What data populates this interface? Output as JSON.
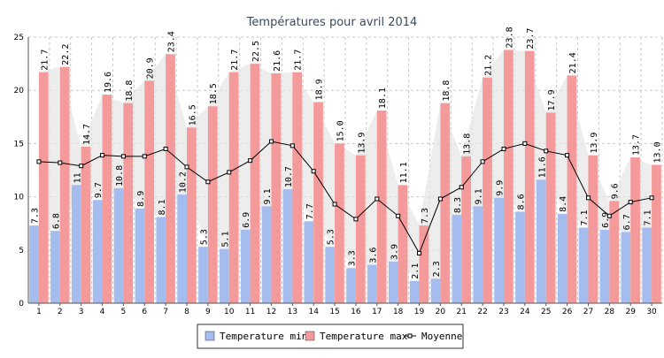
{
  "chart_data": {
    "type": "bar",
    "title": "Températures pour avril 2014",
    "xlabel": "",
    "ylabel": "",
    "ylim": [
      0,
      25
    ],
    "yticks": [
      0,
      5,
      10,
      15,
      20,
      25
    ],
    "grid": true,
    "legend_position": "bottom",
    "categories": [
      "1",
      "2",
      "3",
      "4",
      "5",
      "6",
      "7",
      "8",
      "9",
      "10",
      "11",
      "12",
      "13",
      "14",
      "15",
      "16",
      "17",
      "18",
      "19",
      "20",
      "21",
      "22",
      "23",
      "24",
      "25",
      "26",
      "27",
      "28",
      "29",
      "30"
    ],
    "series": [
      {
        "name": "Temperature min",
        "type": "bar",
        "color": "#a4bdee",
        "values": [
          7.3,
          6.8,
          11.1,
          9.7,
          10.8,
          8.9,
          8.1,
          10.2,
          5.3,
          5.1,
          6.9,
          9.1,
          10.7,
          7.7,
          5.3,
          3.3,
          3.6,
          3.9,
          2.1,
          2.3,
          8.3,
          9.1,
          9.9,
          8.6,
          11.6,
          8.4,
          7.1,
          6.9,
          6.7,
          7.1
        ],
        "labels": [
          "7.3",
          "6.8",
          "11",
          "9.7",
          "10.8",
          "8.9",
          "8.1",
          "10.2",
          "5.3",
          "5.1",
          "6.9",
          "9.1",
          "10.7",
          "7.7",
          "5.3",
          "3.3",
          "3.6",
          "3.9",
          "2.1",
          "2.3",
          "8.3",
          "9.1",
          "9.9",
          "8.6",
          "11.6",
          "8.4",
          "7.1",
          "6.9",
          "6.7",
          "7.1"
        ]
      },
      {
        "name": "Temperature max",
        "type": "bar",
        "color": "#f59a9a",
        "values": [
          21.7,
          22.2,
          14.7,
          19.6,
          18.8,
          20.9,
          23.4,
          16.5,
          18.5,
          21.7,
          22.5,
          21.6,
          21.7,
          18.9,
          15.0,
          13.9,
          18.1,
          11.1,
          7.3,
          18.8,
          13.8,
          21.2,
          23.8,
          23.7,
          17.9,
          21.4,
          13.9,
          9.6,
          13.7,
          13.0
        ],
        "labels": [
          "21.7",
          "22.2",
          "14.7",
          "19.6",
          "18.8",
          "20.9",
          "23.4",
          "16.5",
          "18.5",
          "21.7",
          "22.5",
          "21.6",
          "21.7",
          "18.9",
          "15.0",
          "13.9",
          "18.1",
          "11.1",
          "7.3",
          "18.8",
          "13.8",
          "21.2",
          "23.8",
          "23.7",
          "17.9",
          "21.4",
          "13.9",
          "9.6",
          "13.7",
          "13.0"
        ]
      },
      {
        "name": "Moyenne",
        "type": "line",
        "color": "#000000",
        "values": [
          13.3,
          13.2,
          12.9,
          13.9,
          13.8,
          13.8,
          14.5,
          12.8,
          11.4,
          12.3,
          13.4,
          15.2,
          14.8,
          12.4,
          9.3,
          7.9,
          9.8,
          8.2,
          4.7,
          9.8,
          10.9,
          13.3,
          14.5,
          15.0,
          14.3,
          13.9,
          9.9,
          8.2,
          9.5,
          9.9
        ]
      }
    ],
    "colors": {
      "title": "#3b4a5a",
      "grid": "#c8c8c8",
      "area_fill": "#e6e6e6",
      "axis": "#555555"
    }
  }
}
